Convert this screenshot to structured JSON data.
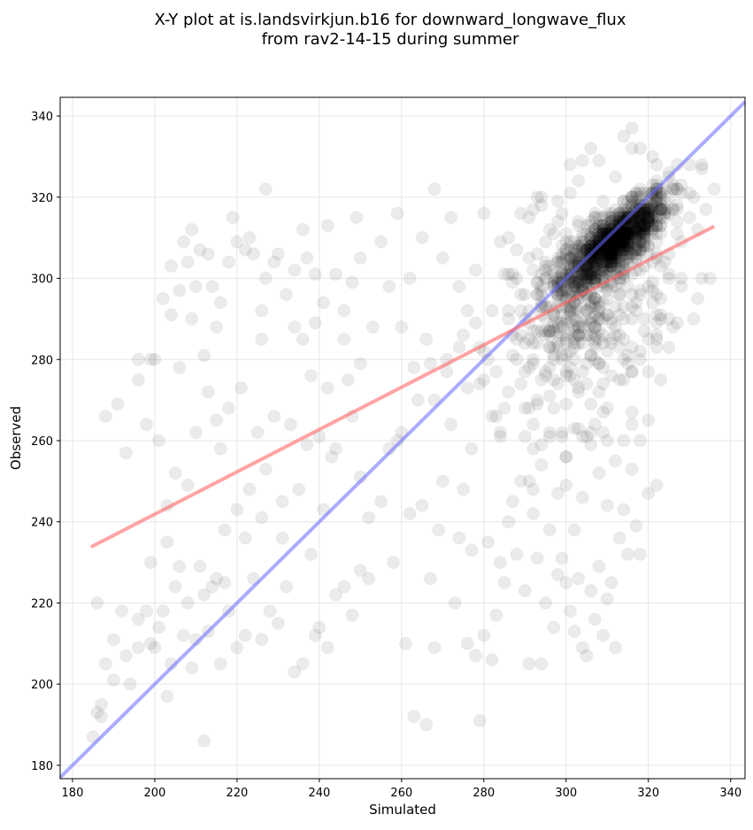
{
  "chart_data": {
    "type": "scatter",
    "title_line1": "X-Y plot at is.landsvirkjun.b16 for downward_longwave_flux",
    "title_line2": "from rav2-14-15 during summer",
    "xlabel": "Simulated",
    "ylabel": "Observed",
    "xlim": [
      177,
      343.5
    ],
    "ylim": [
      176.7,
      344.6
    ],
    "xticks": [
      180,
      200,
      220,
      240,
      260,
      280,
      300,
      320,
      340
    ],
    "yticks": [
      180,
      200,
      220,
      240,
      260,
      280,
      300,
      320,
      340
    ],
    "grid": true,
    "point_color": "#000000",
    "point_alpha": 0.08,
    "fit_line": {
      "color": "#ff6666",
      "x": [
        184.5,
        336
      ],
      "y": [
        233.8,
        312.8
      ]
    },
    "identity_line": {
      "color": "#6666ff",
      "x": [
        177,
        343.5
      ],
      "y": [
        177,
        343.5
      ]
    },
    "dense_clusters": [
      {
        "center": [
          312,
          309
        ],
        "count": 900,
        "sd_x": 6.5,
        "sd_y": 6,
        "corr": 0.8
      },
      {
        "center": [
          305,
          293
        ],
        "count": 450,
        "sd_x": 10,
        "sd_y": 14,
        "corr": 0.3
      }
    ],
    "points": [
      [
        185,
        187
      ],
      [
        186,
        193
      ],
      [
        187,
        192
      ],
      [
        187,
        195
      ],
      [
        186,
        220
      ],
      [
        188,
        205
      ],
      [
        190,
        211
      ],
      [
        190,
        201
      ],
      [
        192,
        218
      ],
      [
        193,
        207
      ],
      [
        194,
        200
      ],
      [
        196,
        209
      ],
      [
        196,
        216
      ],
      [
        198,
        218
      ],
      [
        199,
        210
      ],
      [
        200,
        209
      ],
      [
        201,
        214
      ],
      [
        202,
        218
      ],
      [
        203,
        197
      ],
      [
        204,
        205
      ],
      [
        205,
        224
      ],
      [
        207,
        212
      ],
      [
        208,
        220
      ],
      [
        209,
        204
      ],
      [
        210,
        211
      ],
      [
        212,
        186
      ],
      [
        212,
        222
      ],
      [
        213,
        213
      ],
      [
        214,
        224
      ],
      [
        215,
        226
      ],
      [
        216,
        205
      ],
      [
        217,
        225
      ],
      [
        218,
        218
      ],
      [
        220,
        209
      ],
      [
        222,
        212
      ],
      [
        224,
        226
      ],
      [
        226,
        211
      ],
      [
        228,
        218
      ],
      [
        230,
        215
      ],
      [
        232,
        224
      ],
      [
        234,
        203
      ],
      [
        236,
        205
      ],
      [
        238,
        232
      ],
      [
        240,
        214
      ],
      [
        239,
        212
      ],
      [
        242,
        209
      ],
      [
        244,
        222
      ],
      [
        246,
        224
      ],
      [
        248,
        217
      ],
      [
        250,
        228
      ],
      [
        252,
        226
      ],
      [
        188,
        266
      ],
      [
        191,
        269
      ],
      [
        193,
        257
      ],
      [
        196,
        275
      ],
      [
        198,
        264
      ],
      [
        199,
        280
      ],
      [
        201,
        260
      ],
      [
        203,
        244
      ],
      [
        205,
        252
      ],
      [
        206,
        278
      ],
      [
        208,
        249
      ],
      [
        210,
        262
      ],
      [
        212,
        281
      ],
      [
        213,
        272
      ],
      [
        215,
        265
      ],
      [
        216,
        258
      ],
      [
        218,
        268
      ],
      [
        220,
        243
      ],
      [
        221,
        273
      ],
      [
        223,
        248
      ],
      [
        225,
        262
      ],
      [
        227,
        253
      ],
      [
        229,
        266
      ],
      [
        231,
        245
      ],
      [
        233,
        264
      ],
      [
        235,
        248
      ],
      [
        237,
        259
      ],
      [
        238,
        276
      ],
      [
        240,
        261
      ],
      [
        242,
        273
      ],
      [
        244,
        258
      ],
      [
        246,
        285
      ],
      [
        248,
        266
      ],
      [
        250,
        251
      ],
      [
        252,
        241
      ],
      [
        247,
        275
      ],
      [
        236,
        285
      ],
      [
        241,
        243
      ],
      [
        231,
        236
      ],
      [
        226,
        241
      ],
      [
        217,
        238
      ],
      [
        211,
        229
      ],
      [
        203,
        235
      ],
      [
        199,
        230
      ],
      [
        206,
        229
      ],
      [
        222,
        236
      ],
      [
        243,
        256
      ],
      [
        250,
        279
      ],
      [
        196,
        280
      ],
      [
        200,
        280
      ],
      [
        202,
        295
      ],
      [
        204,
        291
      ],
      [
        206,
        297
      ],
      [
        208,
        304
      ],
      [
        210,
        298
      ],
      [
        211,
        307
      ],
      [
        213,
        306
      ],
      [
        214,
        298
      ],
      [
        216,
        294
      ],
      [
        218,
        304
      ],
      [
        220,
        309
      ],
      [
        222,
        307
      ],
      [
        223,
        310
      ],
      [
        224,
        306
      ],
      [
        226,
        292
      ],
      [
        227,
        300
      ],
      [
        229,
        304
      ],
      [
        230,
        306
      ],
      [
        232,
        296
      ],
      [
        234,
        302
      ],
      [
        236,
        312
      ],
      [
        237,
        305
      ],
      [
        239,
        301
      ],
      [
        241,
        294
      ],
      [
        242,
        313
      ],
      [
        244,
        301
      ],
      [
        246,
        292
      ],
      [
        248,
        299
      ],
      [
        249,
        315
      ],
      [
        250,
        305
      ],
      [
        253,
        288
      ],
      [
        255,
        309
      ],
      [
        257,
        298
      ],
      [
        259,
        316
      ],
      [
        207,
        309
      ],
      [
        209,
        312
      ],
      [
        219,
        315
      ],
      [
        227,
        322
      ],
      [
        234,
        288
      ],
      [
        239,
        289
      ],
      [
        226,
        285
      ],
      [
        215,
        288
      ],
      [
        209,
        290
      ],
      [
        204,
        303
      ],
      [
        255,
        245
      ],
      [
        257,
        258
      ],
      [
        258,
        230
      ],
      [
        259,
        260
      ],
      [
        260,
        262
      ],
      [
        261,
        210
      ],
      [
        262,
        242
      ],
      [
        263,
        192
      ],
      [
        264,
        270
      ],
      [
        265,
        244
      ],
      [
        266,
        190
      ],
      [
        267,
        226
      ],
      [
        268,
        209
      ],
      [
        269,
        238
      ],
      [
        270,
        250
      ],
      [
        271,
        280
      ],
      [
        272,
        264
      ],
      [
        273,
        220
      ],
      [
        274,
        236
      ],
      [
        275,
        248
      ],
      [
        276,
        210
      ],
      [
        277,
        233
      ],
      [
        278,
        207
      ],
      [
        279,
        191
      ],
      [
        280,
        212
      ],
      [
        281,
        235
      ],
      [
        282,
        206
      ],
      [
        283,
        217
      ],
      [
        284,
        230
      ],
      [
        285,
        225
      ],
      [
        286,
        240
      ],
      [
        287,
        245
      ],
      [
        288,
        232
      ],
      [
        289,
        250
      ],
      [
        290,
        223
      ],
      [
        291,
        205
      ],
      [
        292,
        242
      ],
      [
        293,
        231
      ],
      [
        294,
        205
      ],
      [
        295,
        220
      ],
      [
        296,
        238
      ],
      [
        297,
        214
      ],
      [
        298,
        227
      ],
      [
        299,
        231
      ],
      [
        300,
        225
      ],
      [
        301,
        218
      ],
      [
        302,
        213
      ],
      [
        303,
        226
      ],
      [
        304,
        209
      ],
      [
        305,
        207
      ],
      [
        306,
        223
      ],
      [
        307,
        216
      ],
      [
        308,
        229
      ],
      [
        309,
        212
      ],
      [
        310,
        221
      ],
      [
        311,
        225
      ],
      [
        312,
        209
      ],
      [
        313,
        236
      ],
      [
        314,
        243
      ],
      [
        315,
        232
      ],
      [
        316,
        253
      ],
      [
        317,
        239
      ],
      [
        318,
        232
      ],
      [
        320,
        247
      ],
      [
        322,
        249
      ],
      [
        262,
        300
      ],
      [
        265,
        310
      ],
      [
        268,
        322
      ],
      [
        270,
        305
      ],
      [
        272,
        315
      ],
      [
        274,
        298
      ],
      [
        276,
        292
      ],
      [
        278,
        302
      ],
      [
        280,
        316
      ],
      [
        282,
        292
      ],
      [
        284,
        309
      ],
      [
        286,
        310
      ],
      [
        288,
        300
      ],
      [
        290,
        290
      ],
      [
        292,
        317
      ],
      [
        294,
        320
      ],
      [
        296,
        312
      ],
      [
        298,
        305
      ],
      [
        260,
        288
      ],
      [
        263,
        278
      ],
      [
        266,
        285
      ],
      [
        268,
        270
      ],
      [
        271,
        277
      ],
      [
        274,
        283
      ],
      [
        276,
        273
      ],
      [
        278,
        289
      ],
      [
        280,
        275
      ],
      [
        282,
        266
      ],
      [
        284,
        262
      ],
      [
        286,
        272
      ],
      [
        288,
        280
      ],
      [
        290,
        268
      ],
      [
        292,
        258
      ],
      [
        294,
        254
      ],
      [
        296,
        262
      ],
      [
        298,
        247
      ],
      [
        300,
        256
      ],
      [
        302,
        238
      ],
      [
        304,
        246
      ],
      [
        306,
        259
      ],
      [
        308,
        252
      ],
      [
        310,
        244
      ],
      [
        312,
        255
      ],
      [
        314,
        260
      ],
      [
        316,
        267
      ],
      [
        318,
        260
      ],
      [
        320,
        265
      ],
      [
        323,
        275
      ],
      [
        325,
        290
      ],
      [
        327,
        328
      ],
      [
        330,
        328
      ],
      [
        333,
        328
      ],
      [
        336,
        322
      ],
      [
        334,
        317
      ],
      [
        332,
        312
      ],
      [
        328,
        309
      ],
      [
        325,
        300
      ],
      [
        322,
        296
      ],
      [
        320,
        285
      ],
      [
        318,
        282
      ],
      [
        318,
        332
      ],
      [
        316,
        337
      ],
      [
        312,
        325
      ],
      [
        306,
        332
      ],
      [
        304,
        329
      ]
    ]
  }
}
